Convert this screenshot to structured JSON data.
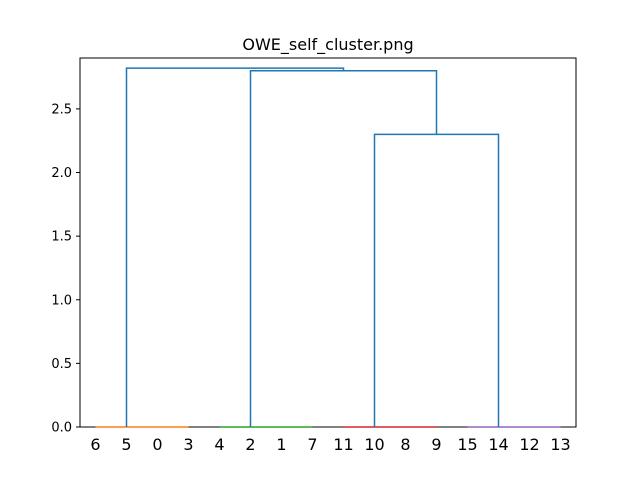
{
  "chart_data": {
    "type": "dendrogram",
    "title": "OWE_self_cluster.png",
    "xlabel": "",
    "ylabel": "",
    "ylim": [
      0,
      2.9
    ],
    "yticks": [
      "0.0",
      "0.5",
      "1.0",
      "1.5",
      "2.0",
      "2.5"
    ],
    "leaves": [
      "6",
      "5",
      "0",
      "3",
      "4",
      "2",
      "1",
      "7",
      "11",
      "10",
      "8",
      "9",
      "15",
      "14",
      "12",
      "13"
    ],
    "clusters": [
      {
        "leaves": [
          "6",
          "5",
          "0",
          "3"
        ],
        "color": "#ff7f0e"
      },
      {
        "leaves": [
          "4",
          "2",
          "1",
          "7"
        ],
        "color": "#2ca02c"
      },
      {
        "leaves": [
          "11",
          "10",
          "8",
          "9"
        ],
        "color": "#d62728"
      },
      {
        "leaves": [
          "15",
          "14",
          "12",
          "13"
        ],
        "color": "#9467bd"
      }
    ],
    "merges": [
      {
        "left": "cluster 3",
        "right": "cluster 4",
        "height": 2.3
      },
      {
        "left": "cluster 2",
        "right": "clusters 3+4",
        "height": 2.8
      },
      {
        "left": "cluster 1",
        "right": "clusters 2+3+4",
        "height": 2.82
      }
    ],
    "link_color": "#1f77b4",
    "grid": false
  }
}
